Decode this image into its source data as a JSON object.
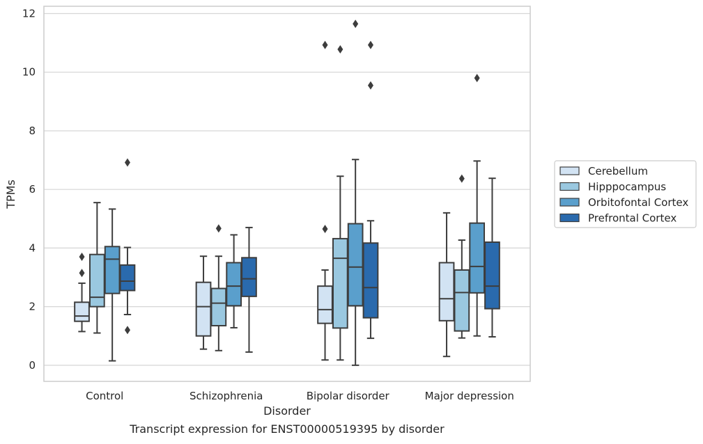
{
  "caption": "Transcript expression for ENST00000519395 by disorder",
  "chart_data": {
    "type": "boxplot",
    "xlabel": "Disorder",
    "ylabel": "TPMs",
    "ylim": [
      -0.55,
      12.25
    ],
    "yticks": [
      0,
      2,
      4,
      6,
      8,
      10,
      12
    ],
    "grid": true,
    "legend_position": "right",
    "categories": [
      "Control",
      "Schizophrenia",
      "Bipolar disorder",
      "Major depression"
    ],
    "series": [
      {
        "name": "Cerebellum",
        "color": "#d2e3f3",
        "boxes": [
          {
            "whislo": 1.15,
            "q1": 1.5,
            "med": 1.68,
            "q3": 2.15,
            "whishi": 2.8,
            "fliers": [
              3.15,
              3.7
            ]
          },
          {
            "whislo": 0.55,
            "q1": 1.0,
            "med": 2.0,
            "q3": 2.83,
            "whishi": 3.72,
            "fliers": []
          },
          {
            "whislo": 0.18,
            "q1": 1.43,
            "med": 1.9,
            "q3": 2.7,
            "whishi": 3.25,
            "fliers": [
              4.65,
              10.93
            ]
          },
          {
            "whislo": 0.3,
            "q1": 1.52,
            "med": 2.27,
            "q3": 3.5,
            "whishi": 5.2,
            "fliers": []
          }
        ]
      },
      {
        "name": "Hipppocampus",
        "color": "#9ac8e0",
        "boxes": [
          {
            "whislo": 1.1,
            "q1": 2.0,
            "med": 2.32,
            "q3": 3.78,
            "whishi": 5.55,
            "fliers": []
          },
          {
            "whislo": 0.5,
            "q1": 1.35,
            "med": 2.12,
            "q3": 2.62,
            "whishi": 3.72,
            "fliers": [
              4.67
            ]
          },
          {
            "whislo": 0.18,
            "q1": 1.27,
            "med": 3.65,
            "q3": 4.32,
            "whishi": 6.45,
            "fliers": [
              10.78
            ]
          },
          {
            "whislo": 0.93,
            "q1": 1.17,
            "med": 2.48,
            "q3": 3.25,
            "whishi": 4.27,
            "fliers": [
              6.37
            ]
          }
        ]
      },
      {
        "name": "Orbitofontal Cortex",
        "color": "#5a9fcc",
        "boxes": [
          {
            "whislo": 0.15,
            "q1": 2.45,
            "med": 3.62,
            "q3": 4.05,
            "whishi": 5.33,
            "fliers": []
          },
          {
            "whislo": 1.28,
            "q1": 2.03,
            "med": 2.7,
            "q3": 3.5,
            "whishi": 4.45,
            "fliers": []
          },
          {
            "whislo": 0.0,
            "q1": 2.03,
            "med": 3.35,
            "q3": 4.83,
            "whishi": 7.02,
            "fliers": [
              11.65
            ]
          },
          {
            "whislo": 1.0,
            "q1": 2.47,
            "med": 3.37,
            "q3": 4.85,
            "whishi": 6.97,
            "fliers": [
              9.8
            ]
          }
        ]
      },
      {
        "name": "Prefrontal Cortex",
        "color": "#2a6aad",
        "boxes": [
          {
            "whislo": 1.73,
            "q1": 2.55,
            "med": 2.87,
            "q3": 3.42,
            "whishi": 4.02,
            "fliers": [
              1.2,
              6.92
            ]
          },
          {
            "whislo": 0.45,
            "q1": 2.35,
            "med": 2.95,
            "q3": 3.67,
            "whishi": 4.7,
            "fliers": []
          },
          {
            "whislo": 0.92,
            "q1": 1.62,
            "med": 2.65,
            "q3": 4.17,
            "whishi": 4.93,
            "fliers": [
              9.55,
              10.93
            ]
          },
          {
            "whislo": 0.97,
            "q1": 1.93,
            "med": 2.7,
            "q3": 4.2,
            "whishi": 6.38,
            "fliers": []
          }
        ]
      }
    ]
  }
}
